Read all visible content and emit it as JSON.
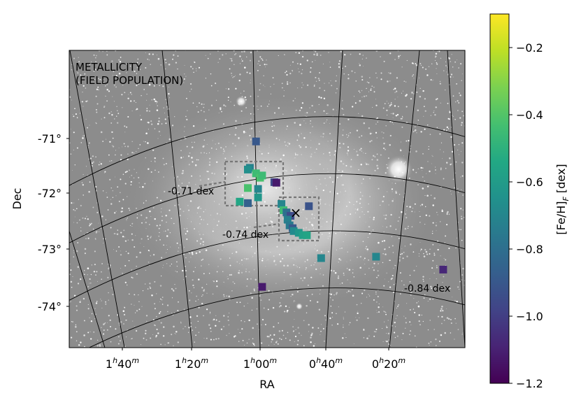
{
  "chart_data": {
    "type": "scatter",
    "plot_title_lines": [
      "METALLICITY",
      "(FIELD POPULATION)"
    ],
    "xlabel": "RA",
    "ylabel": "Dec",
    "background": "grayscale sky image of the Small Magellanic Cloud",
    "ra_ticks": [
      {
        "h": "1",
        "m": "40"
      },
      {
        "h": "1",
        "m": "20"
      },
      {
        "h": "1",
        "m": "00"
      },
      {
        "h": "0",
        "m": "40"
      },
      {
        "h": "0",
        "m": "20"
      }
    ],
    "dec_ticks": [
      "-71°",
      "-72°",
      "-73°",
      "-74°"
    ],
    "colorbar": {
      "label": "[Fe/H]_F [dex]",
      "label_main": "[Fe/H]",
      "label_sub": "F",
      "label_tail": " [dex]",
      "range": [
        -1.2,
        -0.1
      ],
      "ticks": [
        "−0.2",
        "−0.4",
        "−0.6",
        "−0.8",
        "−1.0",
        "−1.2"
      ],
      "tick_values": [
        -0.2,
        -0.4,
        -0.6,
        -0.8,
        -1.0,
        -1.2
      ],
      "colormap": "viridis"
    },
    "region_labels": [
      "-0.71 dex",
      "-0.74 dex",
      "-0.84 dex"
    ],
    "center_marker": "×",
    "points": [
      {
        "ra": 1.02,
        "dec": -71.05,
        "feh": -0.9
      },
      {
        "ra": 1.05,
        "dec": -71.52,
        "feh": -0.72
      },
      {
        "ra": 1.06,
        "dec": -71.55,
        "feh": -0.66
      },
      {
        "ra": 1.02,
        "dec": -71.62,
        "feh": -0.45
      },
      {
        "ra": 1.0,
        "dec": -71.7,
        "feh": -0.42
      },
      {
        "ra": 0.99,
        "dec": -71.66,
        "feh": -0.45
      },
      {
        "ra": 0.93,
        "dec": -71.78,
        "feh": -0.95
      },
      {
        "ra": 0.92,
        "dec": -71.79,
        "feh": -1.12
      },
      {
        "ra": 1.06,
        "dec": -71.88,
        "feh": -0.42
      },
      {
        "ra": 1.01,
        "dec": -71.9,
        "feh": -0.7
      },
      {
        "ra": 1.01,
        "dec": -72.05,
        "feh": -0.62
      },
      {
        "ra": 1.06,
        "dec": -72.15,
        "feh": -0.86
      },
      {
        "ra": 1.1,
        "dec": -72.12,
        "feh": -0.55
      },
      {
        "ra": 0.895,
        "dec": -72.17,
        "feh": -0.7
      },
      {
        "ra": 0.885,
        "dec": -72.28,
        "feh": -0.45
      },
      {
        "ra": 0.87,
        "dec": -72.32,
        "feh": -0.8
      },
      {
        "ra": 0.85,
        "dec": -72.38,
        "feh": -0.95
      },
      {
        "ra": 0.865,
        "dec": -72.45,
        "feh": -0.72
      },
      {
        "ra": 0.855,
        "dec": -72.55,
        "feh": -0.75
      },
      {
        "ra": 0.84,
        "dec": -72.6,
        "feh": -0.9
      },
      {
        "ra": 0.835,
        "dec": -72.65,
        "feh": -0.68
      },
      {
        "ra": 0.81,
        "dec": -72.68,
        "feh": -0.62
      },
      {
        "ra": 0.79,
        "dec": -72.72,
        "feh": -0.58
      },
      {
        "ra": 0.77,
        "dec": -72.72,
        "feh": -0.56
      },
      {
        "ra": 0.76,
        "dec": -72.2,
        "feh": -0.92
      },
      {
        "ra": 0.7,
        "dec": -73.12,
        "feh": -0.7
      },
      {
        "ra": 0.43,
        "dec": -73.03,
        "feh": -0.7
      },
      {
        "ra": 0.1,
        "dec": -73.12,
        "feh": -1.08
      },
      {
        "ra": 0.99,
        "dec": -73.65,
        "feh": -1.12
      }
    ],
    "center": {
      "ra": 0.88,
      "dec": -72.3
    }
  }
}
